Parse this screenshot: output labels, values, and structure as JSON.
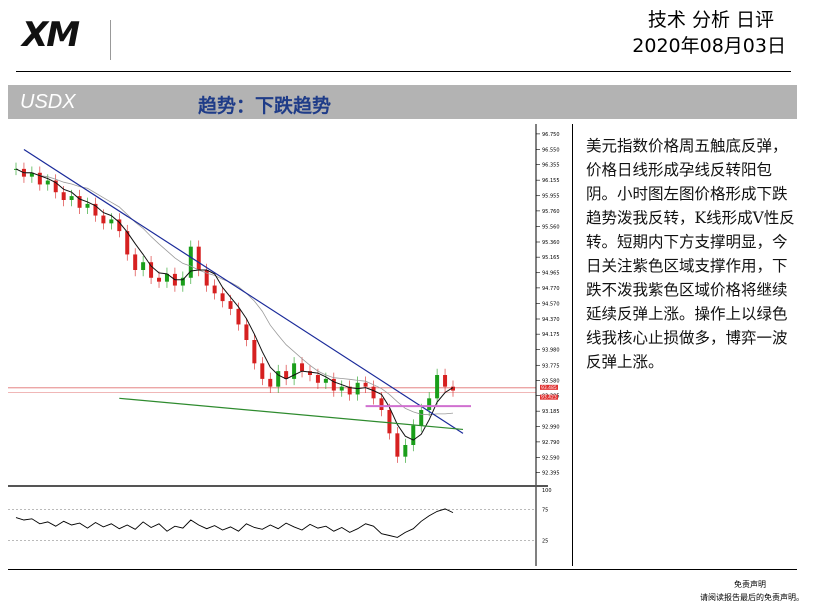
{
  "brand": {
    "logo_text": "XM"
  },
  "header": {
    "title": "技术 分析 日评",
    "date": "2020年08月03日"
  },
  "banner": {
    "symbol": "USDX",
    "trend": "趋势：下跌趋势"
  },
  "chart_data": {
    "type": "line",
    "price_ticks": [
      "96.750",
      "96.550",
      "96.355",
      "96.155",
      "95.955",
      "95.760",
      "95.560",
      "95.360",
      "95.165",
      "94.965",
      "94.770",
      "94.570",
      "94.370",
      "94.175",
      "93.980",
      "93.775",
      "93.580",
      "93.385",
      "93.185",
      "92.990",
      "92.790",
      "92.590",
      "92.395"
    ],
    "current_price_labels": [
      "93.485",
      "93.423"
    ],
    "ylim": [
      92.3,
      96.8
    ],
    "price_series": [
      96.3,
      96.2,
      96.25,
      96.1,
      96.15,
      96.0,
      95.9,
      95.95,
      95.8,
      95.85,
      95.7,
      95.6,
      95.65,
      95.5,
      95.2,
      95.0,
      95.1,
      94.9,
      94.85,
      94.95,
      94.8,
      94.9,
      95.3,
      95.0,
      94.8,
      94.7,
      94.6,
      94.5,
      94.3,
      94.1,
      93.8,
      93.6,
      93.5,
      93.7,
      93.6,
      93.8,
      93.7,
      93.65,
      93.55,
      93.6,
      93.45,
      93.5,
      93.4,
      93.55,
      93.5,
      93.35,
      93.2,
      92.9,
      92.6,
      92.75,
      93.0,
      93.2,
      93.35,
      93.65,
      93.5,
      93.45
    ],
    "rsi_levels": {
      "upper": "75",
      "lower": "25",
      "top": "100"
    },
    "rsi_series": [
      62,
      58,
      60,
      52,
      55,
      48,
      56,
      50,
      53,
      45,
      54,
      47,
      52,
      44,
      50,
      43,
      55,
      46,
      52,
      40,
      48,
      45,
      58,
      50,
      44,
      49,
      42,
      47,
      40,
      52,
      46,
      43,
      50,
      44,
      53,
      47,
      42,
      51,
      45,
      48,
      40,
      46,
      38,
      44,
      52,
      48,
      36,
      33,
      30,
      38,
      44,
      56,
      65,
      72,
      76,
      70
    ],
    "colors": {
      "up": "#1a9e1a",
      "down": "#d62020",
      "trend_blue": "#1a2a9a",
      "trend_green": "#2e8b2e",
      "zone": "#d070d0",
      "ma_black": "#111111",
      "ma_gray": "#9a9a9a"
    }
  },
  "analysis_text": "美元指数价格周五触底反弹，价格日线形成孕线反转阳包阴。小时图左图价格形成下跌趋势泼我反转，K线形成V性反转。短期内下方支撑明显，今日关注紫色区域支撑作用，下跌不泼我紫色区域价格将继续延续反弹上涨。操作上以绿色线我核心止损做多，博弈一波反弹上涨。",
  "footer": {
    "disclaimer_title": "免责声明",
    "disclaimer_note": "请阅读报告最后的免责声明。"
  }
}
